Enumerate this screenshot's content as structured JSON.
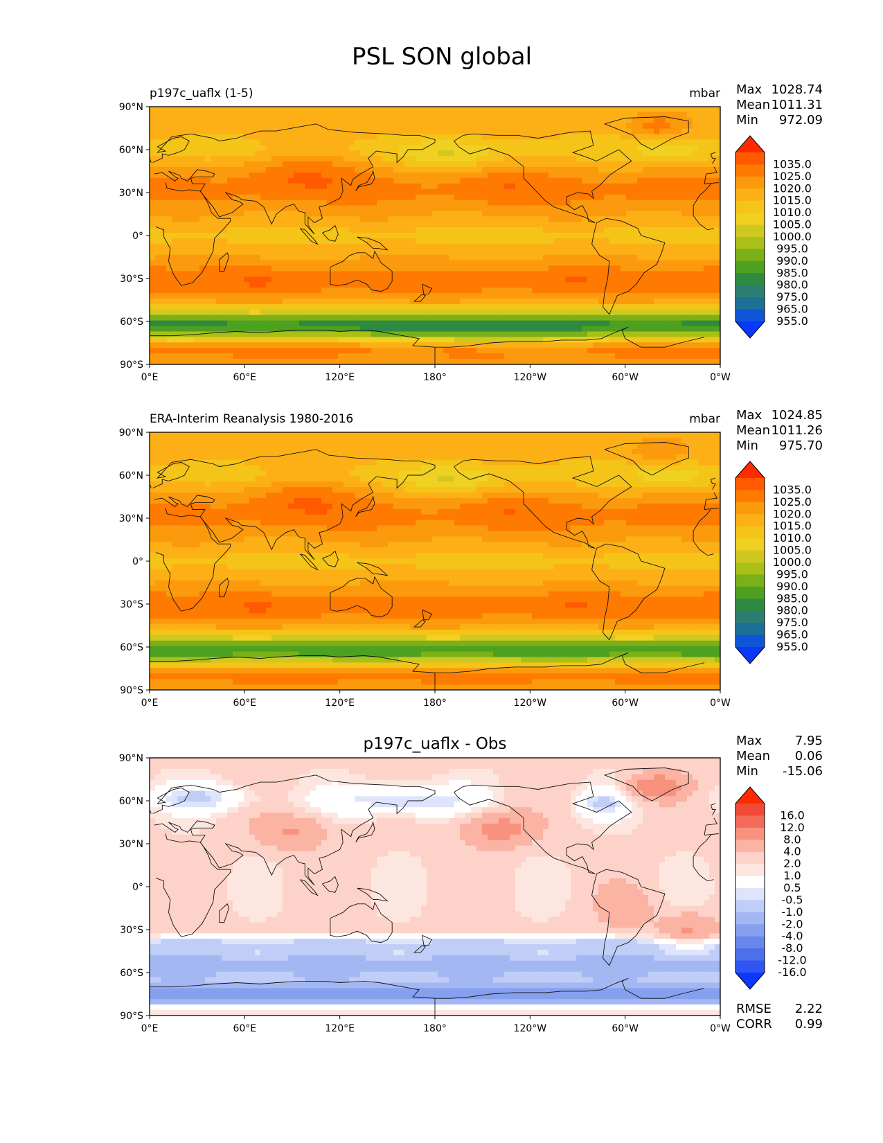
{
  "title": "PSL SON global",
  "axes": {
    "lat_ticks": [
      "90°N",
      "60°N",
      "30°N",
      "0°",
      "30°S",
      "60°S",
      "90°S"
    ],
    "lon_ticks": [
      "0°E",
      "60°E",
      "120°E",
      "180°",
      "120°W",
      "60°W",
      "0°W"
    ]
  },
  "panels": [
    {
      "id": "test",
      "left_title": "p197c_uaflx (1-5)",
      "center_title": "",
      "units": "mbar",
      "stats": [
        {
          "label": "Max",
          "value": "1028.74"
        },
        {
          "label": "Mean",
          "value": "1011.31"
        },
        {
          "label": "Min",
          "value": "972.09"
        }
      ],
      "colorbar": {
        "labels": [
          "1035.0",
          "1025.0",
          "1020.0",
          "1015.0",
          "1010.0",
          "1005.0",
          "1000.0",
          "995.0",
          "990.0",
          "985.0",
          "980.0",
          "975.0",
          "965.0",
          "955.0"
        ],
        "colors": [
          "#ff2a00",
          "#ff5a00",
          "#ff7a00",
          "#fb9a0c",
          "#fdb016",
          "#f5c418",
          "#f0d020",
          "#cfc820",
          "#a8c018",
          "#7ab018",
          "#4ea020",
          "#2e8a40",
          "#2c7e72",
          "#1c7096",
          "#0f56d6",
          "#0a38ff"
        ]
      },
      "field": "abs_test",
      "footer_stats": []
    },
    {
      "id": "reference",
      "left_title": "ERA-Interim Reanalysis 1980-2016",
      "center_title": "",
      "units": "mbar",
      "stats": [
        {
          "label": "Max",
          "value": "1024.85"
        },
        {
          "label": "Mean",
          "value": "1011.26"
        },
        {
          "label": "Min",
          "value": "975.70"
        }
      ],
      "colorbar": {
        "labels": [
          "1035.0",
          "1025.0",
          "1020.0",
          "1015.0",
          "1010.0",
          "1005.0",
          "1000.0",
          "995.0",
          "990.0",
          "985.0",
          "980.0",
          "975.0",
          "965.0",
          "955.0"
        ],
        "colors": [
          "#ff2a00",
          "#ff5a00",
          "#ff7a00",
          "#fb9a0c",
          "#fdb016",
          "#f5c418",
          "#f0d020",
          "#cfc820",
          "#a8c018",
          "#7ab018",
          "#4ea020",
          "#2e8a40",
          "#2c7e72",
          "#1c7096",
          "#0f56d6",
          "#0a38ff"
        ]
      },
      "field": "abs_ref",
      "footer_stats": []
    },
    {
      "id": "difference",
      "left_title": "",
      "center_title": "p197c_uaflx - Obs",
      "units": "",
      "stats": [
        {
          "label": "Max",
          "value": "7.95"
        },
        {
          "label": "Mean",
          "value": "0.06"
        },
        {
          "label": "Min",
          "value": "-15.06"
        }
      ],
      "colorbar": {
        "labels": [
          "16.0",
          "12.0",
          "8.0",
          "4.0",
          "2.0",
          "1.0",
          "0.5",
          "-0.5",
          "-1.0",
          "-2.0",
          "-4.0",
          "-8.0",
          "-12.0",
          "-16.0"
        ],
        "colors": [
          "#ff2a00",
          "#f04a36",
          "#f46a58",
          "#f8927e",
          "#fbb3a3",
          "#fdd2c8",
          "#fde6e0",
          "#ffffff",
          "#dde4fb",
          "#c0cdf7",
          "#a3b7f3",
          "#86a0ef",
          "#6887ec",
          "#4c70ea",
          "#2e55f2",
          "#0a38ff"
        ]
      },
      "field": "diff",
      "footer_stats": [
        {
          "label": "RMSE",
          "value": "2.22"
        },
        {
          "label": "CORR",
          "value": "0.99"
        }
      ]
    }
  ]
}
